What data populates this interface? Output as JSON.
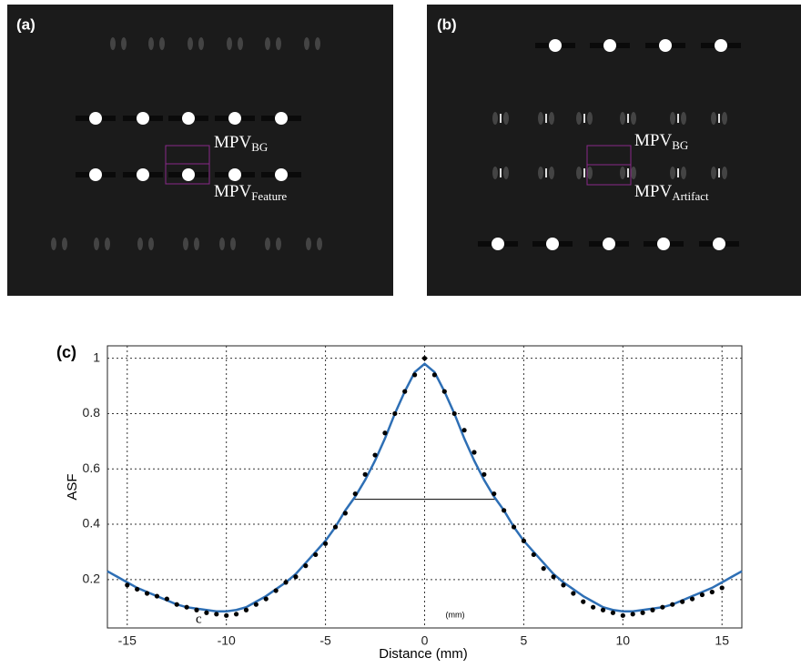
{
  "panel_a": {
    "label": "(a)",
    "annotations": [
      {
        "main": "MPV",
        "sub": "BG"
      },
      {
        "main": "MPV",
        "sub": "Feature"
      }
    ]
  },
  "panel_b": {
    "label": "(b)",
    "annotations": [
      {
        "main": "MPV",
        "sub": "BG"
      },
      {
        "main": "MPV",
        "sub": "Artifact"
      }
    ]
  },
  "chart_data": {
    "type": "line",
    "label": "(c)",
    "xlabel": "Distance (mm)",
    "ylabel": "ASF",
    "annotations": [
      {
        "text": "c"
      },
      {
        "text": "(mm)"
      }
    ],
    "x": [
      -16,
      -15.5,
      -15,
      -14.5,
      -14,
      -13.5,
      -13,
      -12.5,
      -12,
      -11.5,
      -11,
      -10.5,
      -10,
      -9.5,
      -9,
      -8.5,
      -8,
      -7.5,
      -7,
      -6.5,
      -6,
      -5.5,
      -5,
      -4.5,
      -4,
      -3.5,
      -3,
      -2.5,
      -2,
      -1.5,
      -1,
      -0.5,
      0,
      0.5,
      1,
      1.5,
      2,
      2.5,
      3,
      3.5,
      4,
      4.5,
      5,
      5.5,
      6,
      6.5,
      7,
      7.5,
      8,
      8.5,
      9,
      9.5,
      10,
      10.5,
      11,
      11.5,
      12,
      12.5,
      13,
      13.5,
      14,
      14.5,
      15,
      15.5,
      16
    ],
    "series": [
      {
        "color": "#2e6fb5",
        "marker": "none",
        "values": [
          0.23,
          0.21,
          0.19,
          0.17,
          0.155,
          0.14,
          0.125,
          0.11,
          0.1,
          0.095,
          0.09,
          0.085,
          0.085,
          0.09,
          0.1,
          0.12,
          0.14,
          0.165,
          0.19,
          0.22,
          0.26,
          0.3,
          0.34,
          0.39,
          0.45,
          0.5,
          0.56,
          0.63,
          0.71,
          0.8,
          0.88,
          0.95,
          0.98,
          0.95,
          0.88,
          0.8,
          0.71,
          0.63,
          0.56,
          0.5,
          0.45,
          0.39,
          0.34,
          0.3,
          0.26,
          0.22,
          0.19,
          0.165,
          0.14,
          0.12,
          0.1,
          0.09,
          0.085,
          0.085,
          0.09,
          0.095,
          0.1,
          0.11,
          0.125,
          0.14,
          0.155,
          0.17,
          0.19,
          0.21,
          0.23
        ]
      },
      {
        "color": "#000000",
        "marker": "dot",
        "values": [
          null,
          null,
          0.18,
          0.165,
          0.15,
          0.14,
          0.13,
          0.11,
          0.1,
          0.09,
          0.08,
          0.075,
          0.07,
          0.075,
          0.09,
          0.11,
          0.13,
          0.16,
          0.19,
          0.21,
          0.25,
          0.29,
          0.33,
          0.39,
          0.44,
          0.51,
          0.58,
          0.65,
          0.73,
          0.8,
          0.88,
          0.94,
          1.0,
          0.94,
          0.88,
          0.8,
          0.74,
          0.66,
          0.58,
          0.51,
          0.45,
          0.39,
          0.34,
          0.29,
          0.24,
          0.21,
          0.18,
          0.15,
          0.12,
          0.1,
          0.09,
          0.08,
          0.07,
          0.075,
          0.08,
          0.09,
          0.1,
          0.11,
          0.12,
          0.13,
          0.145,
          0.155,
          0.17,
          null,
          null
        ]
      }
    ],
    "fwhm": {
      "y": 0.49,
      "x": [
        -3.6,
        3.6
      ]
    },
    "xlim": [
      -16,
      16
    ],
    "xticks": [
      -15,
      -10,
      -5,
      0,
      5,
      10,
      15
    ],
    "ylim": [
      0.025,
      1.045
    ],
    "yticks": [
      0.2,
      0.4,
      0.6,
      0.8,
      1
    ],
    "grid": true
  }
}
